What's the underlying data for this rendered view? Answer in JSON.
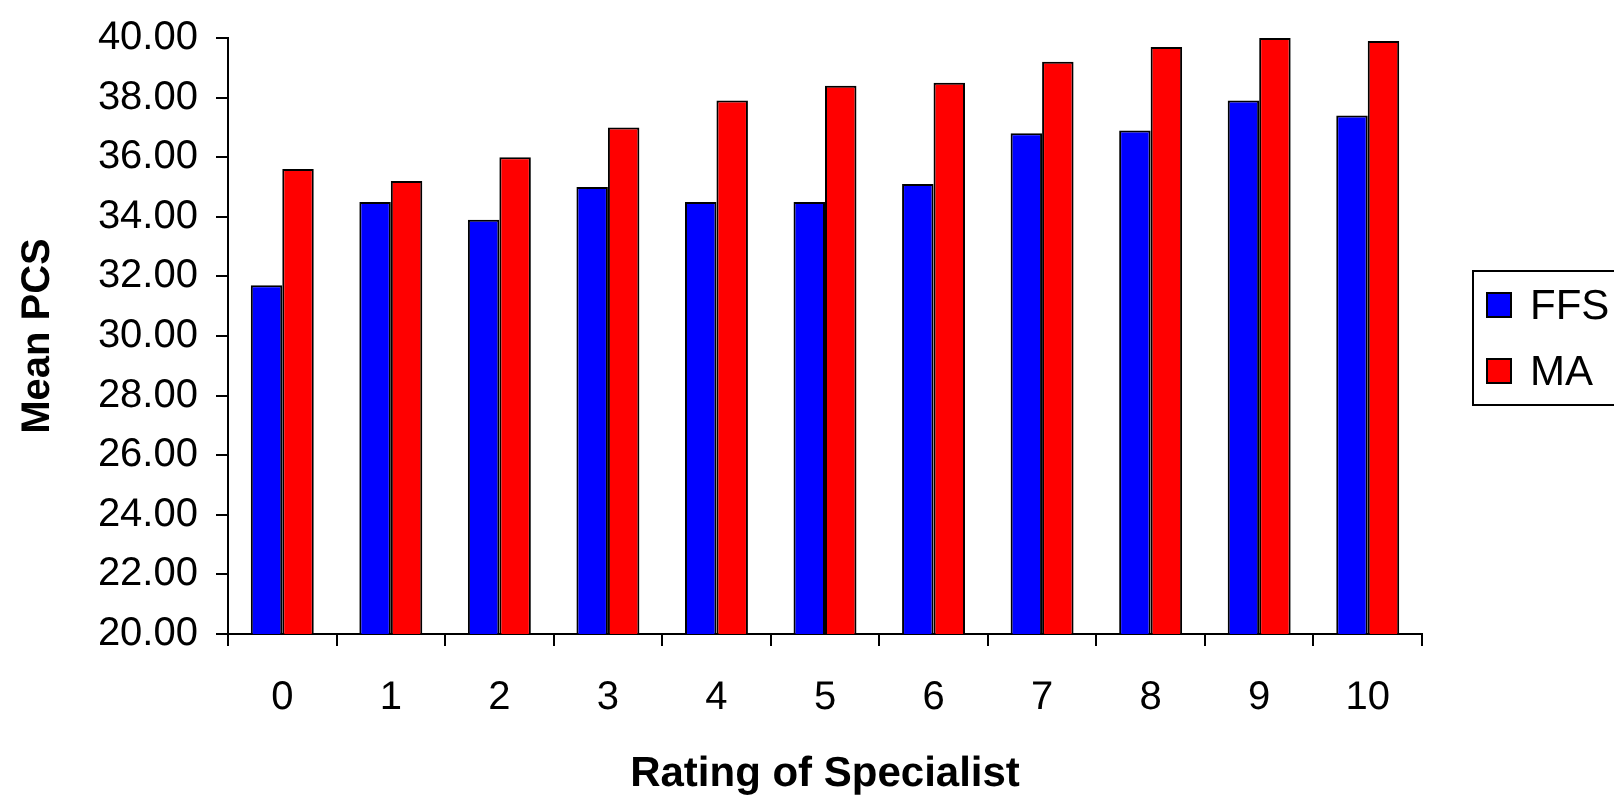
{
  "chart_data": {
    "type": "bar",
    "xlabel": "Rating of Specialist",
    "ylabel": "Mean PCS",
    "categories": [
      "0",
      "1",
      "2",
      "3",
      "4",
      "5",
      "6",
      "7",
      "8",
      "9",
      "10"
    ],
    "series": [
      {
        "name": "FFS",
        "color": "#0000ff",
        "values": [
          31.7,
          34.5,
          33.9,
          35.0,
          34.5,
          34.5,
          35.1,
          36.8,
          36.9,
          37.9,
          37.4
        ]
      },
      {
        "name": "MA",
        "color": "#ff0000",
        "values": [
          35.6,
          35.2,
          36.0,
          37.0,
          37.9,
          38.4,
          38.5,
          39.2,
          39.7,
          40.0,
          39.9
        ]
      }
    ],
    "ylim": [
      20,
      40
    ],
    "yticks": [
      {
        "value": 20,
        "label": "20.00"
      },
      {
        "value": 22,
        "label": "22.00"
      },
      {
        "value": 24,
        "label": "24.00"
      },
      {
        "value": 26,
        "label": "26.00"
      },
      {
        "value": 28,
        "label": "28.00"
      },
      {
        "value": 30,
        "label": "30.00"
      },
      {
        "value": 32,
        "label": "32.00"
      },
      {
        "value": 34,
        "label": "34.00"
      },
      {
        "value": 36,
        "label": "36.00"
      },
      {
        "value": 38,
        "label": "38.00"
      },
      {
        "value": 40,
        "label": "40.00"
      }
    ],
    "grid": false,
    "legend": "right"
  }
}
